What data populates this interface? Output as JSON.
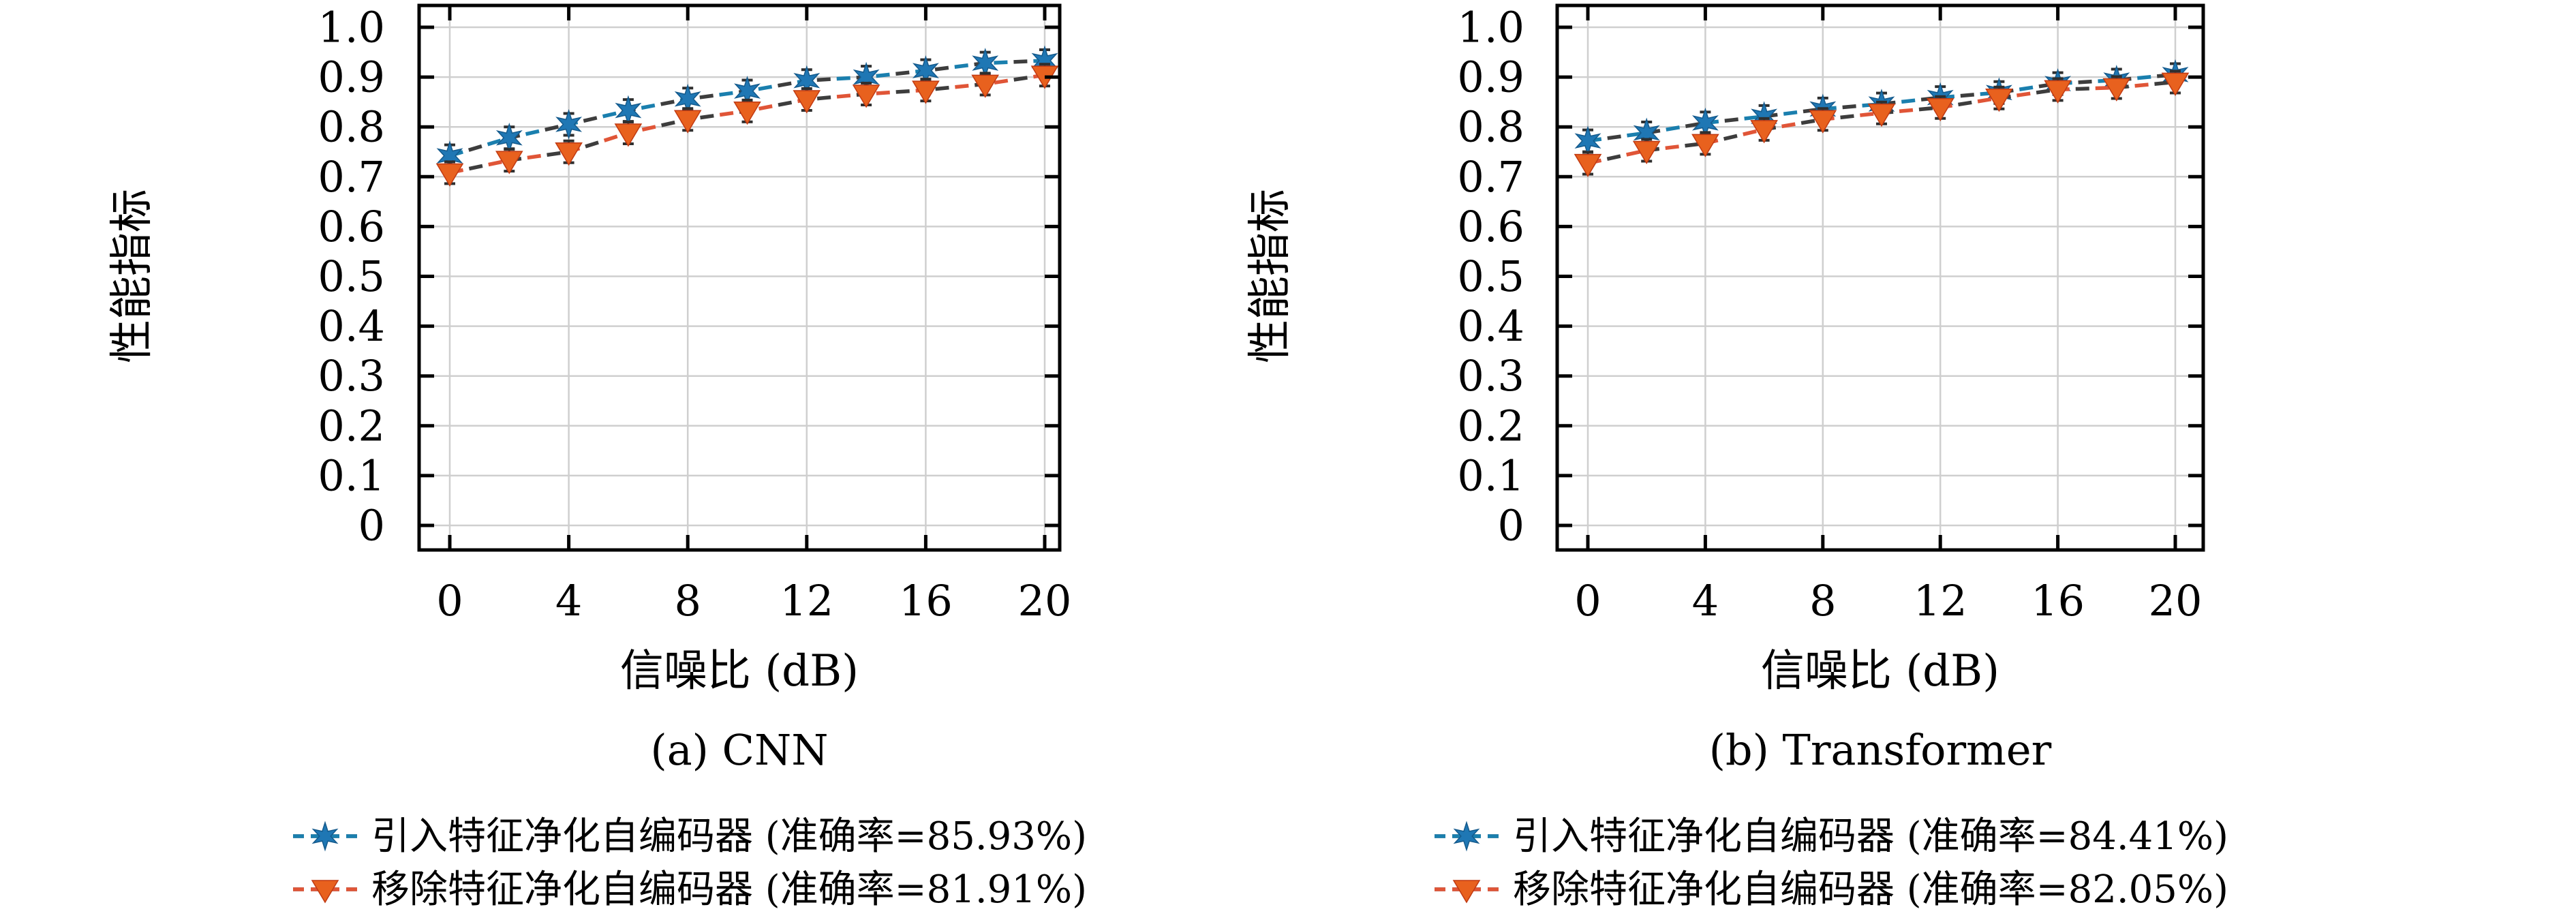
{
  "page": {
    "background": "#ffffff",
    "text_color": "#000000",
    "grid_color": "#cfcfcf",
    "spine_color": "#000000",
    "errorbar_color": "#2f2f2f",
    "dash_alt_color": "#3d3d3d"
  },
  "chart_data": [
    {
      "type": "line",
      "caption": "(a) CNN",
      "xlabel": "信噪比 (dB)",
      "ylabel": "性能指标",
      "x": [
        0,
        2,
        4,
        6,
        8,
        10,
        12,
        14,
        16,
        18,
        20
      ],
      "xticks": [
        0,
        4,
        8,
        12,
        16,
        20
      ],
      "yticks": [
        0,
        0.1,
        0.2,
        0.3,
        0.4,
        0.5,
        0.6,
        0.7,
        0.8,
        0.9,
        1.0
      ],
      "xlim": [
        -1.05,
        20.5
      ],
      "ylim": [
        -0.05,
        1.045
      ],
      "grid": true,
      "legend_position": "below",
      "series": [
        {
          "name": "引入特征净化自编码器 (准确率=85.93%)",
          "marker": "star",
          "line_color": "#1a7fae",
          "marker_color": "#1f77b4",
          "values": [
            0.742,
            0.778,
            0.805,
            0.833,
            0.856,
            0.872,
            0.893,
            0.9,
            0.913,
            0.928,
            0.933
          ]
        },
        {
          "name": "移除特征净化自编码器 (准确率=81.91%)",
          "marker": "triangle-down",
          "line_color": "#e05537",
          "marker_color": "#e8611e",
          "values": [
            0.708,
            0.733,
            0.75,
            0.788,
            0.815,
            0.832,
            0.855,
            0.866,
            0.874,
            0.886,
            0.904
          ]
        }
      ]
    },
    {
      "type": "line",
      "caption": "(b) Transformer",
      "xlabel": "信噪比 (dB)",
      "ylabel": "性能指标",
      "x": [
        0,
        2,
        4,
        6,
        8,
        10,
        12,
        14,
        16,
        18,
        20
      ],
      "xticks": [
        0,
        4,
        8,
        12,
        16,
        20
      ],
      "yticks": [
        0,
        0.1,
        0.2,
        0.3,
        0.4,
        0.5,
        0.6,
        0.7,
        0.8,
        0.9,
        1.0
      ],
      "xlim": [
        -1.05,
        20.5
      ],
      "ylim": [
        -0.05,
        1.045
      ],
      "grid": true,
      "legend_position": "below",
      "series": [
        {
          "name": "引入特征净化自编码器 (准确率=84.41%)",
          "marker": "star",
          "line_color": "#1a7fae",
          "marker_color": "#1f77b4",
          "values": [
            0.772,
            0.788,
            0.808,
            0.821,
            0.836,
            0.846,
            0.859,
            0.869,
            0.887,
            0.894,
            0.905
          ]
        },
        {
          "name": "移除特征净化自编码器 (准确率=82.05%)",
          "marker": "triangle-down",
          "line_color": "#e05537",
          "marker_color": "#e8611e",
          "values": [
            0.727,
            0.753,
            0.767,
            0.795,
            0.815,
            0.828,
            0.839,
            0.858,
            0.875,
            0.879,
            0.89
          ]
        }
      ]
    }
  ]
}
